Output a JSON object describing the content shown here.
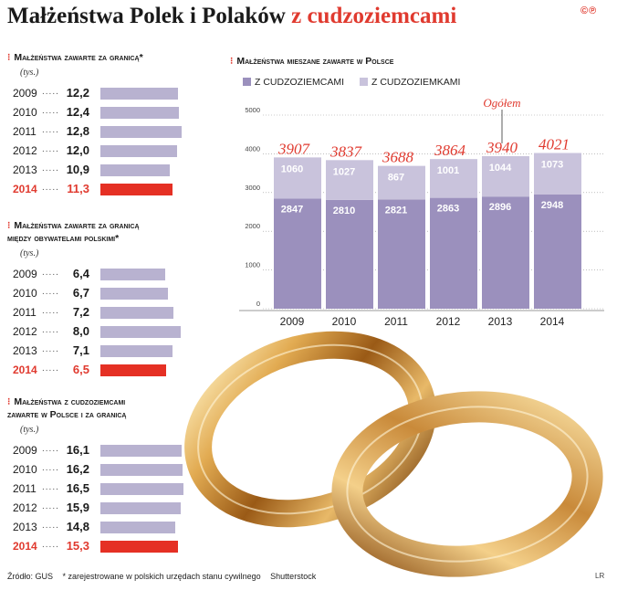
{
  "title": {
    "main": "Małżeństwa Polek i Polaków",
    "accent": "z cudzoziemcami"
  },
  "logo": "©℗",
  "left_sections": [
    {
      "title_lines": [
        "Małżeństwa zawarte za granicą*"
      ],
      "unit": "(tys.)",
      "rows": [
        {
          "year": "2009",
          "value": 12.2,
          "label": "12,2"
        },
        {
          "year": "2010",
          "value": 12.4,
          "label": "12,4"
        },
        {
          "year": "2011",
          "value": 12.8,
          "label": "12,8"
        },
        {
          "year": "2012",
          "value": 12.0,
          "label": "12,0"
        },
        {
          "year": "2013",
          "value": 10.9,
          "label": "10,9"
        },
        {
          "year": "2014",
          "value": 11.3,
          "label": "11,3",
          "highlight": true
        }
      ]
    },
    {
      "title_lines": [
        "Małżeństwa zawarte za granicą",
        "między obywatelami polskimi*"
      ],
      "unit": "(tys.)",
      "rows": [
        {
          "year": "2009",
          "value": 6.4,
          "label": "6,4"
        },
        {
          "year": "2010",
          "value": 6.7,
          "label": "6,7"
        },
        {
          "year": "2011",
          "value": 7.2,
          "label": "7,2"
        },
        {
          "year": "2012",
          "value": 8.0,
          "label": "8,0"
        },
        {
          "year": "2013",
          "value": 7.1,
          "label": "7,1"
        },
        {
          "year": "2014",
          "value": 6.5,
          "label": "6,5",
          "highlight": true
        }
      ]
    },
    {
      "title_lines": [
        "Małżeństwa z cudzoziemcami",
        "zawarte w Polsce i za granicą"
      ],
      "unit": "(tys.)",
      "rows": [
        {
          "year": "2009",
          "value": 16.1,
          "label": "16,1"
        },
        {
          "year": "2010",
          "value": 16.2,
          "label": "16,2"
        },
        {
          "year": "2011",
          "value": 16.5,
          "label": "16,5"
        },
        {
          "year": "2012",
          "value": 15.9,
          "label": "15,9"
        },
        {
          "year": "2013",
          "value": 14.8,
          "label": "14,8"
        },
        {
          "year": "2014",
          "value": 15.3,
          "label": "15,3",
          "highlight": true
        }
      ]
    }
  ],
  "chart_data": {
    "type": "bar",
    "stacked": true,
    "title": "Małżeństwa mieszane zawarte w Polsce",
    "categories": [
      "2009",
      "2010",
      "2011",
      "2012",
      "2013",
      "2014"
    ],
    "series": [
      {
        "name": "Z CUDZOZIEMCAMI",
        "color": "#9b90bd",
        "values": [
          2847,
          2810,
          2821,
          2863,
          2896,
          2948
        ]
      },
      {
        "name": "Z CUDZOZIEMKAMI",
        "color": "#c9c3dc",
        "values": [
          1060,
          1027,
          867,
          1001,
          1044,
          1073
        ]
      }
    ],
    "totals": [
      3907,
      3837,
      3688,
      3864,
      3940,
      4021
    ],
    "totals_label": "Ogółem",
    "yticks": [
      0,
      1000,
      2000,
      3000,
      4000,
      5000
    ],
    "ylim": [
      0,
      5000
    ],
    "grid": true,
    "legend": "top"
  },
  "footer": {
    "source": "Źródło: GUS",
    "note": "* zarejestrowane w polskich urzędach stanu cywilnego",
    "photo": "Shutterstock",
    "author": "LR"
  },
  "colors": {
    "accent": "#e03a2f",
    "bar": "#b8b2d0",
    "bar_highlight": "#e53024"
  }
}
